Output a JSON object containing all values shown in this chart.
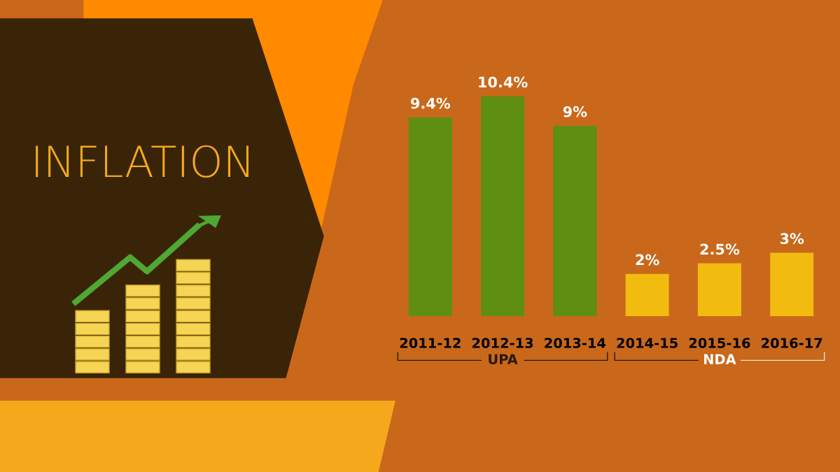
{
  "chart_data": {
    "type": "bar",
    "title": "INFLATION",
    "categories": [
      "2011-12",
      "2012-13",
      "2013-14",
      "2014-15",
      "2015-16",
      "2016-17"
    ],
    "values": [
      9.4,
      10.4,
      9,
      2,
      2.5,
      3
    ],
    "value_labels": [
      "9.4%",
      "10.4%",
      "9%",
      "2%",
      "2.5%",
      "3%"
    ],
    "colors": [
      "#5e8e12",
      "#5e8e12",
      "#5e8e12",
      "#f2bb10",
      "#f2bb10",
      "#f2bb10"
    ],
    "annotations": [
      "UPA",
      "NDA"
    ],
    "grid": false,
    "legend": false
  }
}
